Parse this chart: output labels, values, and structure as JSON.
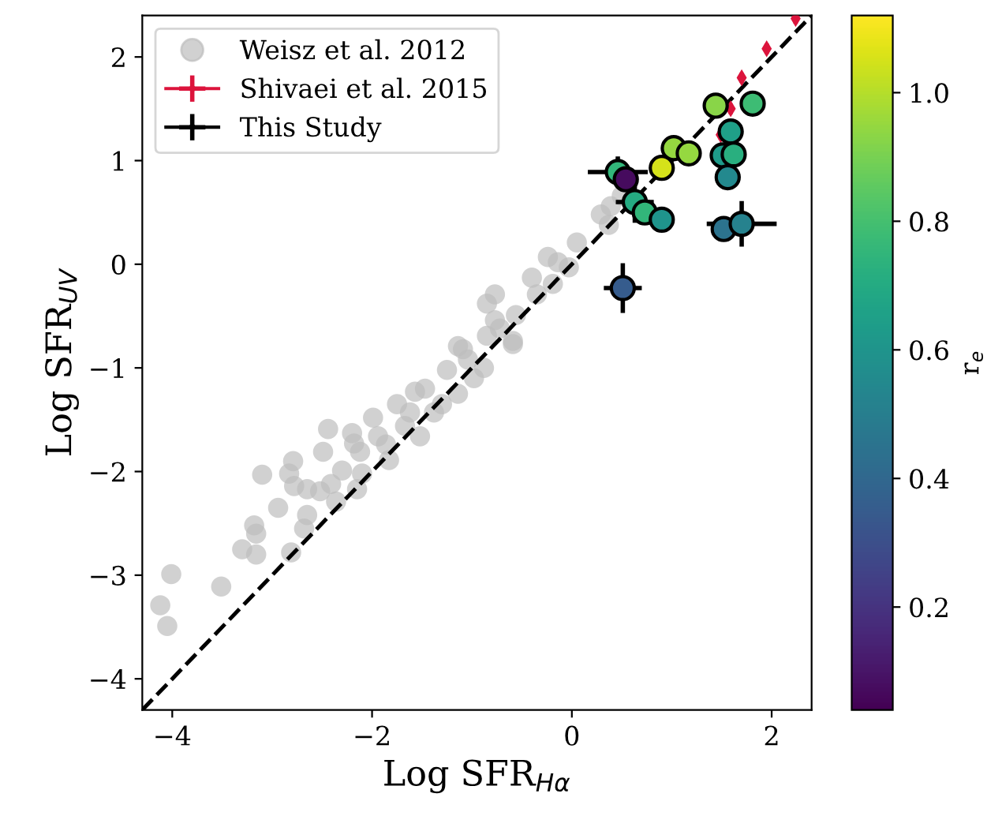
{
  "chart_data": {
    "type": "scatter",
    "xlabel": "Log SFR$_{Hα}$",
    "ylabel": "Log SFR$_{UV}$",
    "clabel": "r$_{e}$",
    "xlim": [
      -4.3,
      2.4
    ],
    "ylim": [
      -4.3,
      2.4
    ],
    "xticks": [
      {
        "value": -4,
        "label": "−4"
      },
      {
        "value": -2,
        "label": "−2"
      },
      0,
      2
    ],
    "yticks": [
      {
        "value": -4,
        "label": "−4"
      },
      {
        "value": -3,
        "label": "−3"
      },
      {
        "value": -2,
        "label": "−2"
      },
      {
        "value": -1,
        "label": "−1"
      },
      0,
      1,
      2
    ],
    "clim": [
      0.04,
      1.12
    ],
    "cticks": [
      0.2,
      0.4,
      0.6,
      0.8,
      {
        "value": 1,
        "label": "1.0"
      }
    ],
    "grid": false,
    "legend": "top left",
    "series": [
      {
        "type": "line",
        "color": "#000000",
        "line_style": "dashed",
        "marker": "none",
        "x": [
          -4.3,
          2.4
        ],
        "values": [
          -4.3,
          2.4
        ]
      },
      {
        "name": "Weisz et al. 2012",
        "color": "#bdbdbd",
        "marker": "circle",
        "x": [
          -4.12,
          -4.05,
          -4.01,
          -3.51,
          -3.1,
          -3.3,
          -3.16,
          -3.18,
          -3.16,
          -2.94,
          -2.81,
          -2.79,
          -2.83,
          -2.78,
          -2.65,
          -2.65,
          -2.68,
          -2.52,
          -2.49,
          -2.44,
          -2.41,
          -2.36,
          -2.3,
          -2.2,
          -2.18,
          -2.12,
          -2.15,
          -2.1,
          -1.99,
          -1.94,
          -1.86,
          -1.83,
          -1.75,
          -1.67,
          -1.62,
          -1.57,
          -1.52,
          -1.47,
          -1.38,
          -1.3,
          -1.25,
          -1.14,
          -1.09,
          -1.04,
          -0.98,
          -0.88,
          -0.85,
          -0.72,
          -0.59,
          -0.77,
          -1.14,
          -0.85,
          -0.77,
          -0.59,
          -0.56,
          -0.4,
          -0.24,
          -0.14,
          -0.03,
          0.05,
          -0.35,
          -0.19,
          0.29,
          0.37,
          0.39,
          0.5
        ],
        "values": [
          -3.29,
          -3.49,
          -2.99,
          -3.11,
          -2.03,
          -2.75,
          -2.8,
          -2.52,
          -2.6,
          -2.35,
          -2.78,
          -1.9,
          -2.02,
          -2.14,
          -2.17,
          -2.42,
          -2.55,
          -2.19,
          -1.81,
          -1.59,
          -2.12,
          -2.29,
          -1.99,
          -1.63,
          -1.73,
          -1.81,
          -2.17,
          -2.02,
          -1.48,
          -1.66,
          -1.74,
          -1.89,
          -1.35,
          -1.56,
          -1.43,
          -1.23,
          -1.66,
          -1.2,
          -1.43,
          -1.35,
          -1.02,
          -1.25,
          -0.82,
          -0.92,
          -1.1,
          -1.0,
          -0.69,
          -0.62,
          -0.77,
          -0.54,
          -0.79,
          -0.38,
          -0.29,
          -0.74,
          -0.49,
          -0.13,
          0.07,
          0.02,
          -0.03,
          0.21,
          -0.29,
          -0.19,
          0.48,
          0.38,
          0.56,
          0.66
        ]
      },
      {
        "name": "Shivaei et al. 2015",
        "color": "#dc143c",
        "marker": "diamond",
        "x": [
          1.49,
          1.59,
          1.7,
          1.95,
          2.24
        ],
        "values": [
          1.25,
          1.5,
          1.8,
          2.08,
          2.37
        ],
        "errors": [
          0.05,
          0.05,
          0.05,
          0.05,
          0.05
        ]
      },
      {
        "name": "This Study",
        "color": "#000000",
        "marker": "circle",
        "x": [
          0.46,
          0.54,
          0.63,
          0.73,
          0.9,
          0.9,
          1.02,
          1.17,
          1.44,
          1.81,
          1.59,
          1.51,
          1.62,
          1.56,
          1.52,
          1.7,
          0.51
        ],
        "values": [
          0.89,
          0.82,
          0.6,
          0.5,
          0.43,
          0.93,
          1.12,
          1.07,
          1.53,
          1.55,
          1.28,
          1.05,
          1.06,
          0.84,
          0.34,
          0.39,
          -0.23
        ],
        "cvalues": [
          0.75,
          0.07,
          0.7,
          0.75,
          0.6,
          1.05,
          0.95,
          0.95,
          0.93,
          0.78,
          0.65,
          0.63,
          0.72,
          0.55,
          0.45,
          0.52,
          0.35
        ],
        "errors": [
          0.15,
          null,
          0.2,
          null,
          null,
          null,
          null,
          null,
          null,
          null,
          null,
          null,
          null,
          null,
          null,
          0.22,
          0.24
        ],
        "xerrors": [
          0.3,
          null,
          0.19,
          null,
          null,
          null,
          null,
          null,
          null,
          null,
          null,
          null,
          null,
          null,
          null,
          0.35,
          0.19
        ]
      }
    ]
  }
}
